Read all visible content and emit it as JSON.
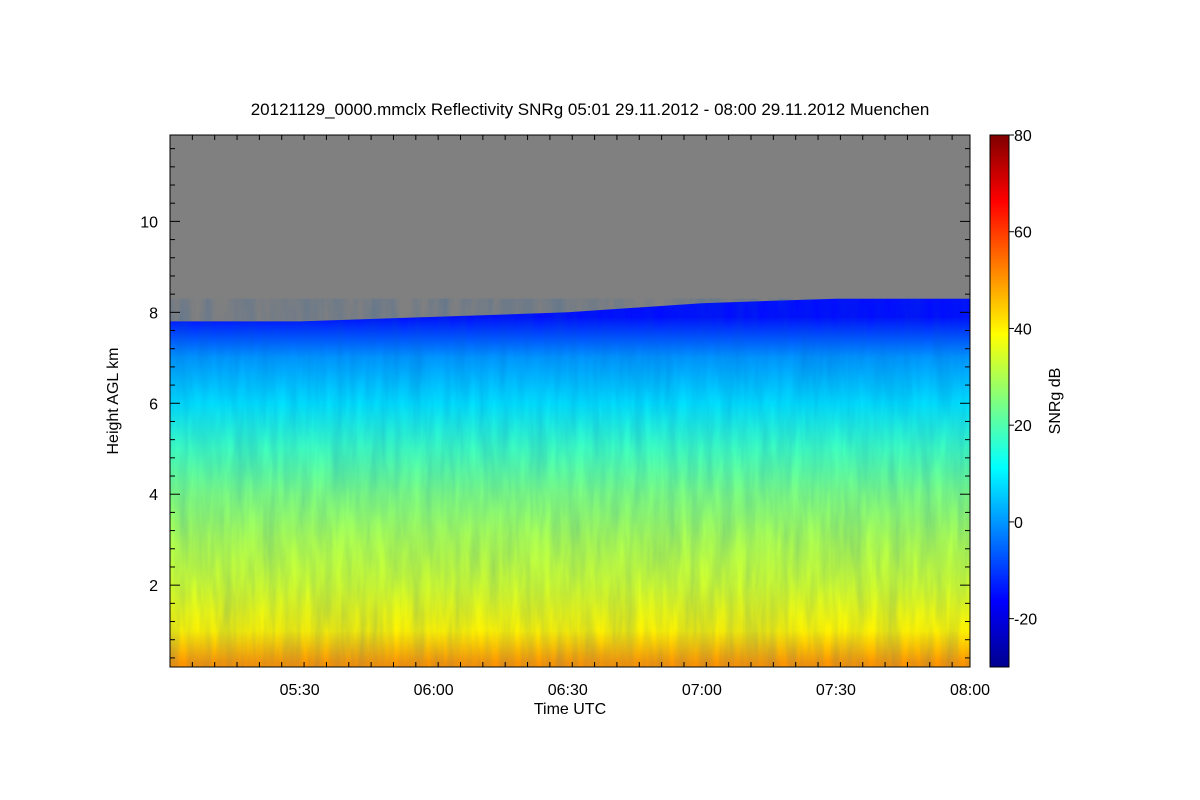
{
  "chart_data": {
    "type": "heatmap",
    "title": "20121129_0000.mmclx Reflectivity SNRg   05:01 29.11.2012 - 08:00 29.11.2012 Muenchen",
    "xlabel": "Time UTC",
    "ylabel": "Height AGL km",
    "colorbar_label": "SNRg dB",
    "x_range": [
      "05:01",
      "08:00"
    ],
    "x_ticks": [
      "05:30",
      "06:00",
      "06:30",
      "07:00",
      "07:30",
      "08:00"
    ],
    "y_range": [
      0.2,
      11.9
    ],
    "y_ticks": [
      "2",
      "4",
      "6",
      "8",
      "10"
    ],
    "colorbar_range": [
      -30,
      80
    ],
    "colorbar_ticks": [
      "-20",
      "0",
      "20",
      "40",
      "60",
      "80"
    ],
    "no_signal_color": "#808080",
    "profile": [
      {
        "height_km": 0.3,
        "snr_db": 50
      },
      {
        "height_km": 1.0,
        "snr_db": 40
      },
      {
        "height_km": 2.0,
        "snr_db": 34
      },
      {
        "height_km": 3.0,
        "snr_db": 30
      },
      {
        "height_km": 4.0,
        "snr_db": 25
      },
      {
        "height_km": 5.0,
        "snr_db": 18
      },
      {
        "height_km": 6.0,
        "snr_db": 8
      },
      {
        "height_km": 7.0,
        "snr_db": 0
      },
      {
        "height_km": 7.9,
        "snr_db": -15
      }
    ],
    "echo_top_km": [
      {
        "time": "05:01",
        "height_km": 7.8
      },
      {
        "time": "05:30",
        "height_km": 7.8
      },
      {
        "time": "06:00",
        "height_km": 7.9
      },
      {
        "time": "06:30",
        "height_km": 8.0
      },
      {
        "time": "07:00",
        "height_km": 8.2
      },
      {
        "time": "07:30",
        "height_km": 8.3
      },
      {
        "time": "08:00",
        "height_km": 8.3
      }
    ]
  }
}
